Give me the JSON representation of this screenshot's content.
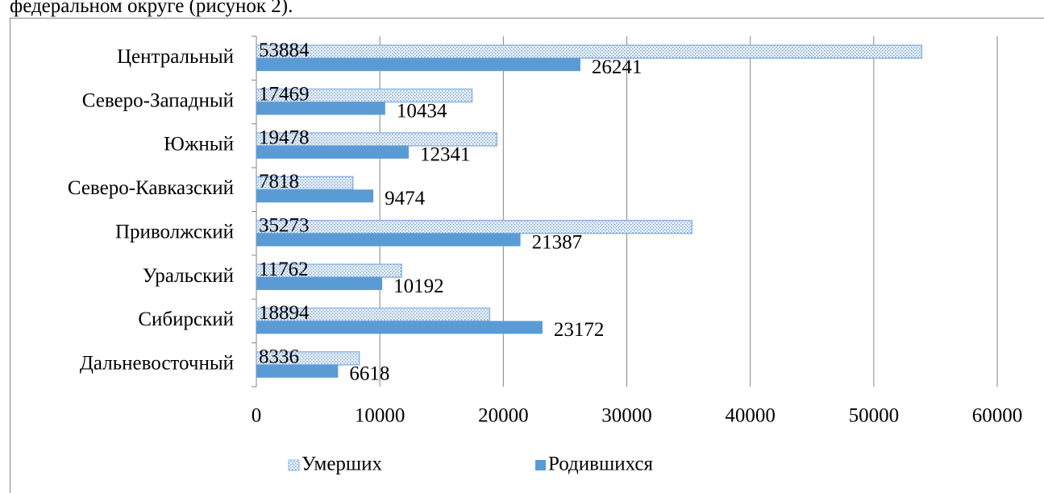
{
  "context_text": "федеральном округе (рисунок 2).",
  "chart_data": {
    "type": "bar",
    "orientation": "horizontal",
    "categories": [
      "Центральный",
      "Северо-Западный",
      "Южный",
      "Северо-Кавказский",
      "Приволжский",
      "Уральский",
      "Сибирский",
      "Дальневосточный"
    ],
    "series": [
      {
        "name": "Умерших",
        "color": "#8eb4e3",
        "pattern": "dots",
        "values": [
          53884,
          17469,
          19478,
          7818,
          35273,
          11762,
          18894,
          8336
        ]
      },
      {
        "name": "Родившихся",
        "color": "#5b9bd5",
        "values": [
          26241,
          10434,
          12341,
          9474,
          21387,
          10192,
          23172,
          6618
        ]
      }
    ],
    "xlim": [
      0,
      60000
    ],
    "xticks": [
      0,
      10000,
      20000,
      30000,
      40000,
      50000,
      60000
    ],
    "grid": true,
    "legend": "bottom",
    "data_labels": true
  }
}
